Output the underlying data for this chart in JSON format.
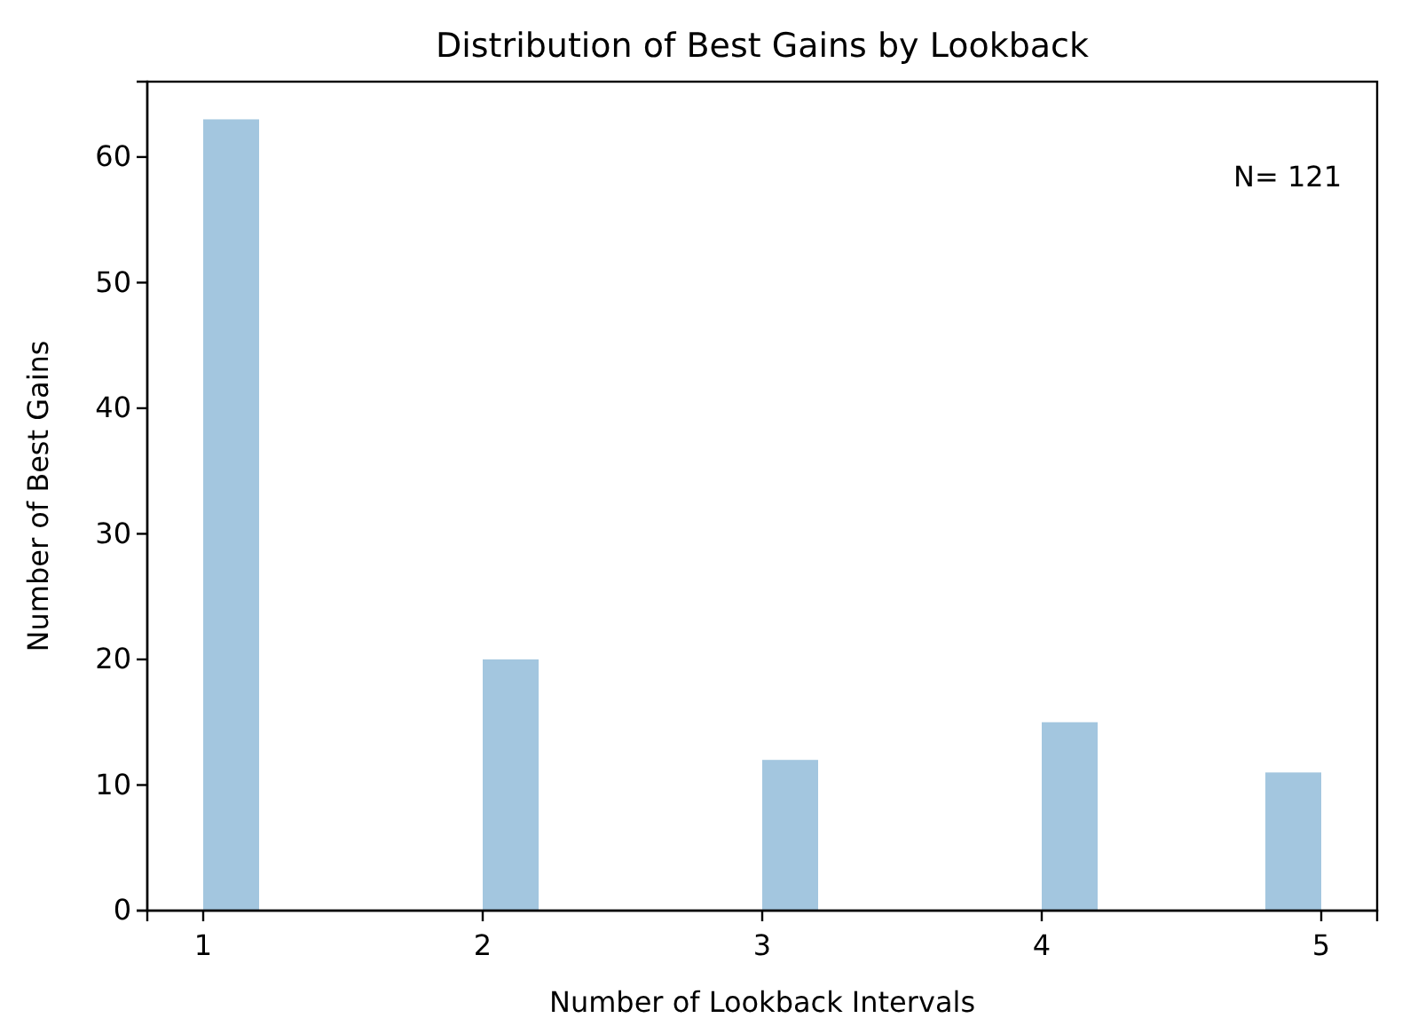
{
  "chart_data": {
    "type": "histogram",
    "title": "Distribution of Best Gains by Lookback",
    "xlabel": "Number of Lookback Intervals",
    "ylabel": "Number of Best Gains",
    "bins": [
      1,
      1.2,
      1.4,
      1.6,
      1.8,
      2,
      2.2,
      2.4,
      2.6,
      2.8,
      3,
      3.2,
      3.4,
      3.6,
      3.8,
      4,
      4.2,
      4.4,
      4.6,
      4.8,
      5
    ],
    "values": [
      63,
      0,
      0,
      0,
      0,
      20,
      0,
      0,
      0,
      0,
      12,
      0,
      0,
      0,
      0,
      15,
      0,
      0,
      0,
      11
    ],
    "color": "#a3c6df",
    "xlim": [
      0.8,
      5.2
    ],
    "xticks": [
      1,
      2,
      3,
      4,
      5
    ],
    "ylim": [
      0,
      66
    ],
    "yticks": [
      0,
      10,
      20,
      30,
      40,
      50,
      60
    ],
    "grid": false,
    "annotations": [
      "N= 121"
    ]
  }
}
